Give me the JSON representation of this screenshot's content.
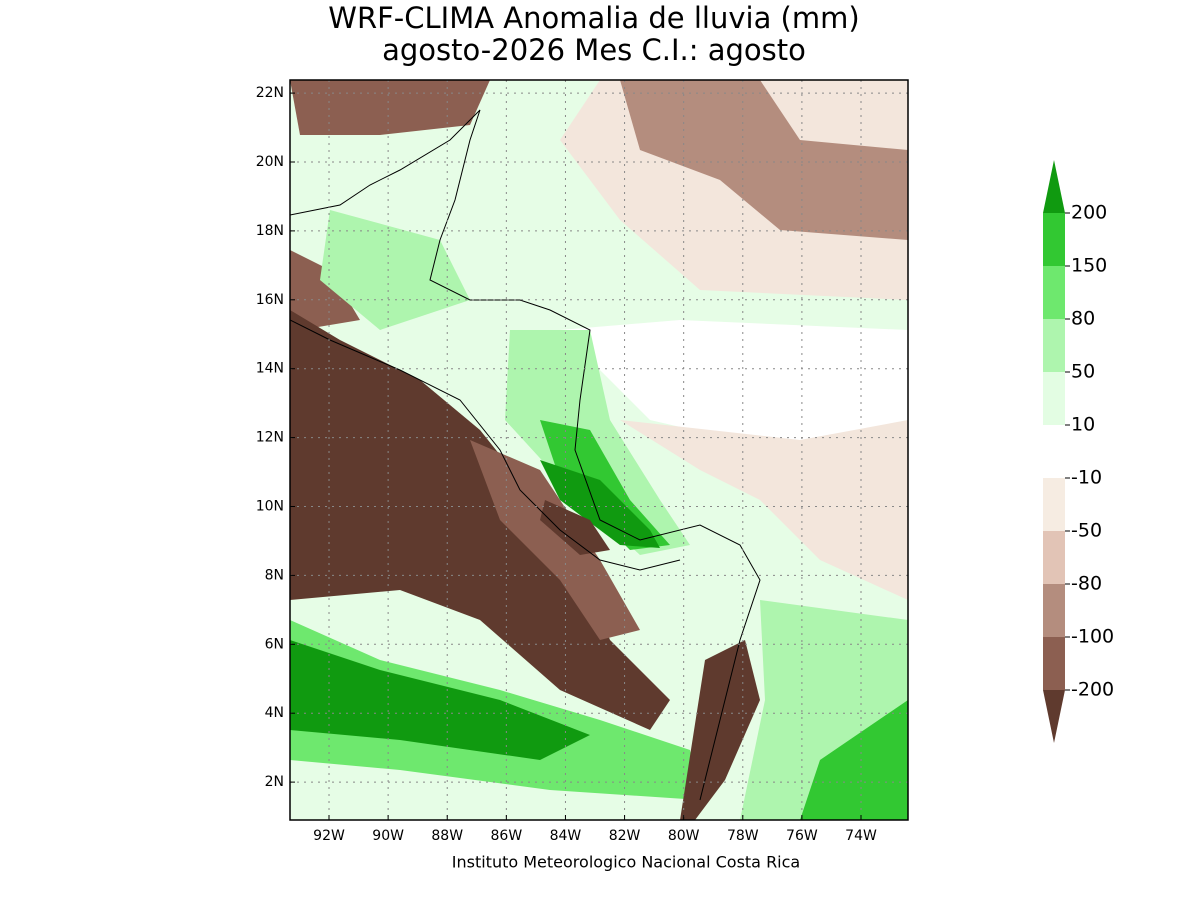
{
  "map": {
    "title": [
      "WRF-CLIMA Anomalia de lluvia (mm)",
      "agosto-2026 Mes C.I.: agosto"
    ],
    "xlim": [
      -93.32,
      -72.41
    ],
    "ylim": [
      0.9,
      22.38
    ],
    "lon_ticks": [
      {
        "value": -92,
        "label": "92W"
      },
      {
        "value": -90,
        "label": "90W"
      },
      {
        "value": -88,
        "label": "88W"
      },
      {
        "value": -86,
        "label": "86W"
      },
      {
        "value": -84,
        "label": "84W"
      },
      {
        "value": -82,
        "label": "82W"
      },
      {
        "value": -80,
        "label": "80W"
      },
      {
        "value": -78,
        "label": "78W"
      },
      {
        "value": -76,
        "label": "76W"
      },
      {
        "value": -74,
        "label": "74W"
      }
    ],
    "lat_ticks": [
      {
        "value": 2,
        "label": "2N"
      },
      {
        "value": 4,
        "label": "4N"
      },
      {
        "value": 6,
        "label": "6N"
      },
      {
        "value": 8,
        "label": "8N"
      },
      {
        "value": 10,
        "label": "10N"
      },
      {
        "value": 12,
        "label": "12N"
      },
      {
        "value": 14,
        "label": "14N"
      },
      {
        "value": 16,
        "label": "16N"
      },
      {
        "value": 18,
        "label": "18N"
      },
      {
        "value": 20,
        "label": "20N"
      },
      {
        "value": 22,
        "label": "22N"
      }
    ],
    "grid": true,
    "colorbar": {
      "levels": [
        200,
        150,
        80,
        50,
        10,
        -10,
        -50,
        -80,
        -100,
        -200
      ],
      "colors": [
        "#109a10",
        "#32c832",
        "#6ee86e",
        "#aef5ae",
        "#e3fde3",
        "#ffffff",
        "#f6ece2",
        "#e2c4b6",
        "#b48d7e",
        "#8c5f51",
        "#5f3a2e"
      ]
    },
    "credit": "Instituto Meteorologico Nacional Costa Rica"
  }
}
